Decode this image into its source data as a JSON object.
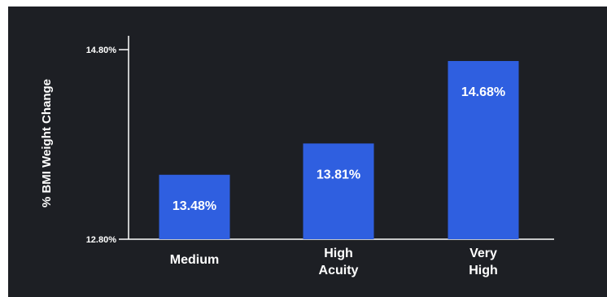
{
  "chart_data": {
    "type": "bar",
    "title": "",
    "xlabel": "",
    "ylabel": "% BMI Weight Change",
    "categories": [
      [
        "Medium"
      ],
      [
        "High",
        "Acuity"
      ],
      [
        "Very",
        "High"
      ]
    ],
    "values": [
      13.48,
      13.81,
      14.68
    ],
    "value_labels": [
      "13.48%",
      "13.81%",
      "14.68%"
    ],
    "ylim": [
      12.8,
      14.8
    ],
    "y_ticks": [
      12.8,
      14.8
    ],
    "y_tick_labels": [
      "12.80%",
      "14.80%"
    ],
    "grid": false,
    "legend": "none",
    "colors": {
      "background": "#1d1f24",
      "bar": "#2f5fe0",
      "text": "#ffffff",
      "axis": "#ffffff"
    }
  }
}
